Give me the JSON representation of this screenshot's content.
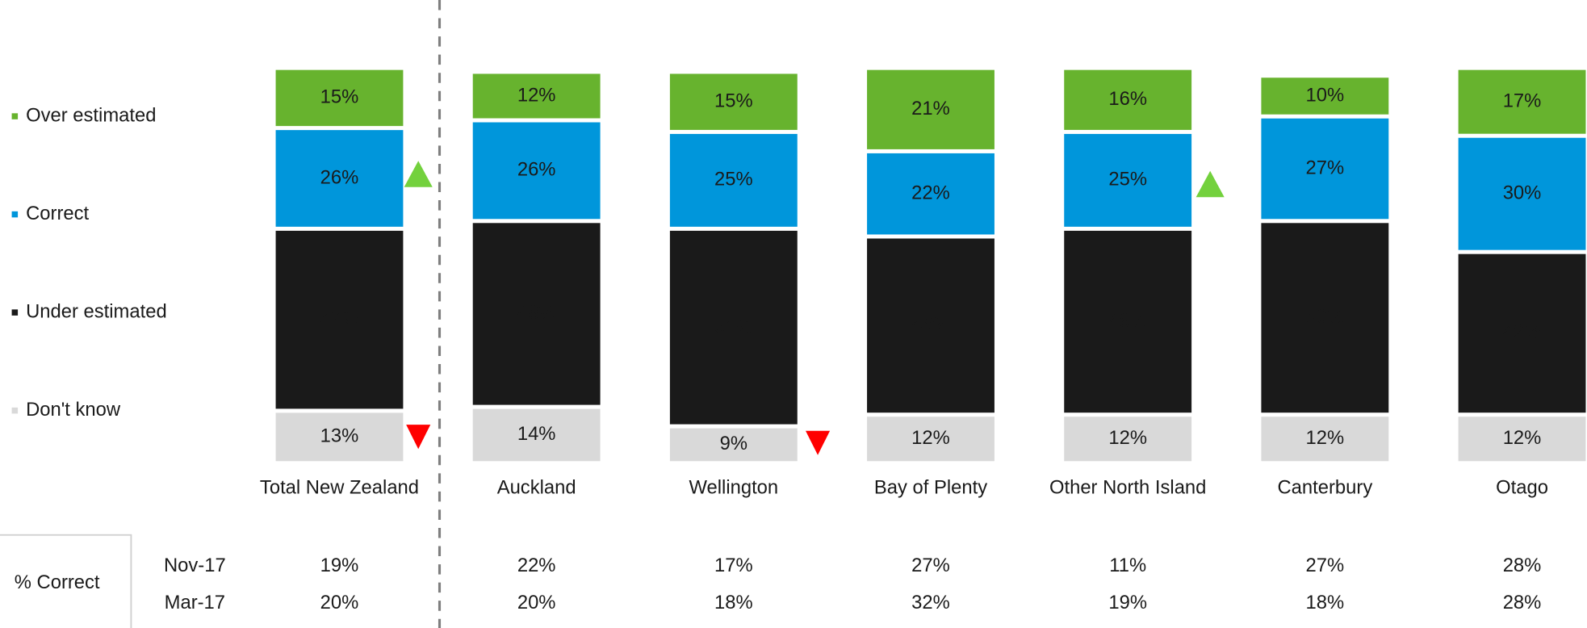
{
  "chart_data": {
    "type": "stacked_bar",
    "categories": [
      "Total New Zealand",
      "Auckland",
      "Wellington",
      "Bay of Plenty",
      "Other North Island",
      "Canterbury",
      "Otago"
    ],
    "ylim": [
      0,
      100
    ],
    "series": [
      {
        "name": "Don't know",
        "color": "#d9d9d9",
        "values": [
          13,
          14,
          9,
          12,
          12,
          12,
          12
        ],
        "value_labels": [
          "13%",
          "14%",
          "9%",
          "12%",
          "12%",
          "12%",
          "12%"
        ]
      },
      {
        "name": "Under estimated",
        "color": "#1a1a1a",
        "values": [
          47,
          48,
          51,
          46,
          48,
          50,
          42
        ],
        "value_labels": [
          "47%",
          "48%",
          "51%",
          "46%",
          "48%",
          "50%",
          "42%"
        ]
      },
      {
        "name": "Correct",
        "color": "#0096db",
        "values": [
          26,
          26,
          25,
          22,
          25,
          27,
          30
        ],
        "value_labels": [
          "26%",
          "26%",
          "25%",
          "22%",
          "25%",
          "27%",
          "30%"
        ]
      },
      {
        "name": "Over estimated",
        "color": "#67b32e",
        "values": [
          15,
          12,
          15,
          21,
          16,
          10,
          17
        ],
        "value_labels": [
          "15%",
          "12%",
          "15%",
          "21%",
          "16%",
          "10%",
          "17%"
        ]
      }
    ]
  },
  "table": {
    "label": "% Correct",
    "rows": [
      {
        "name": "Nov-17",
        "values": [
          "19%",
          "22%",
          "17%",
          "27%",
          "11%",
          "27%",
          "28%"
        ]
      },
      {
        "name": "Mar-17",
        "values": [
          "20%",
          "20%",
          "18%",
          "32%",
          "19%",
          "18%",
          "28%"
        ]
      }
    ]
  }
}
